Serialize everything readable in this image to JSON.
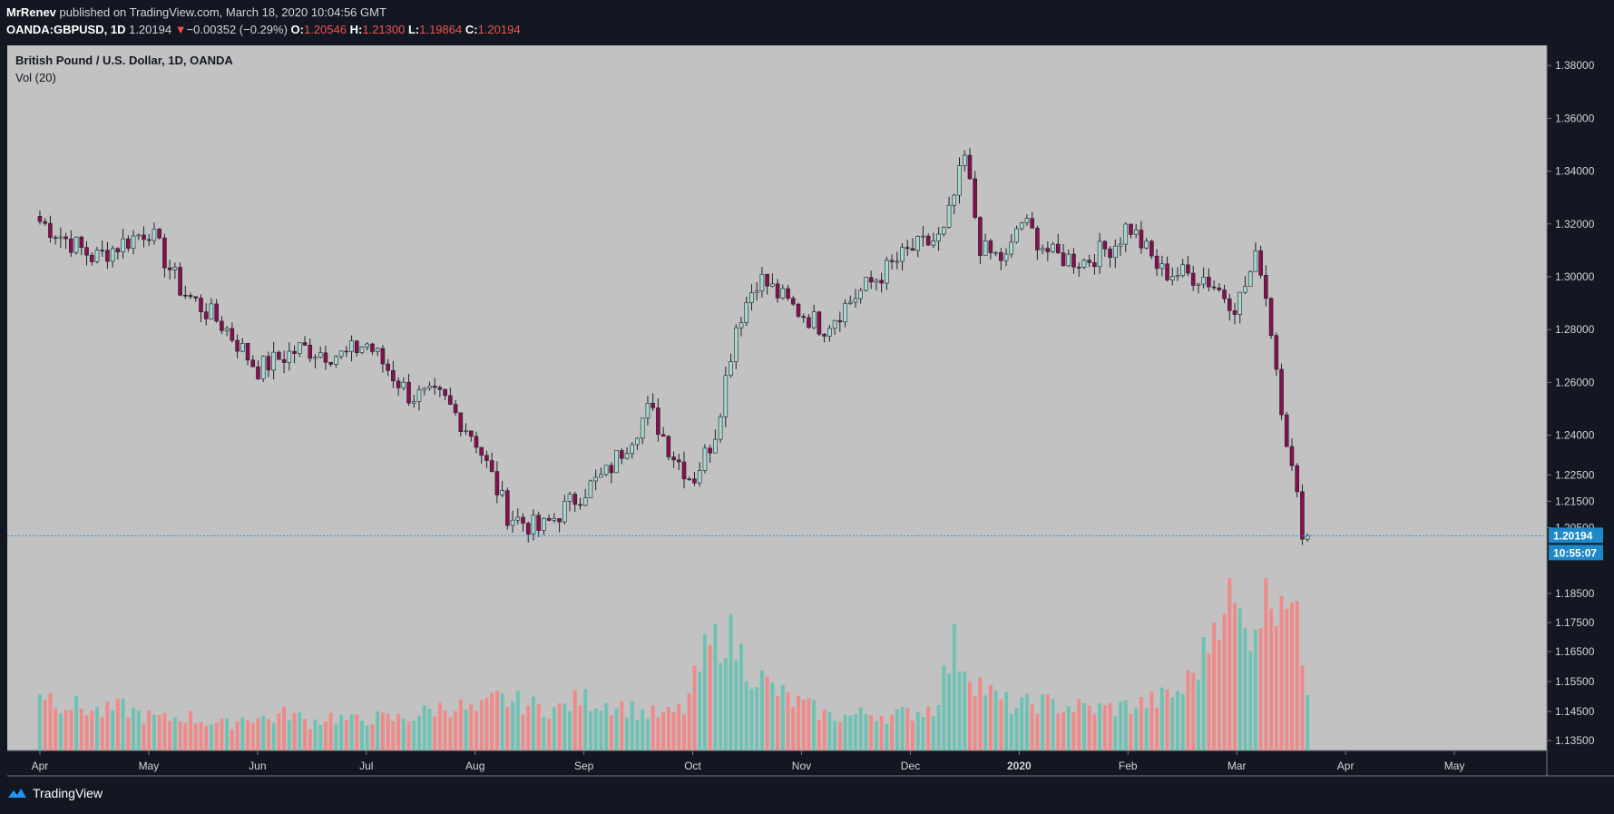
{
  "header": {
    "author": "MrRenev",
    "published_text": "published on TradingView.com, March 18, 2020 10:04:56 GMT",
    "symbol": "OANDA:GBPUSD, 1D",
    "last": "1.20194",
    "change_arrow": "▼",
    "change": "−0.00352 (−0.29%)",
    "o_label": "O:",
    "o_value": "1.20546",
    "h_label": "H:",
    "h_value": "1.21300",
    "l_label": "L:",
    "l_value": "1.19864",
    "c_label": "C:",
    "c_value": "1.20194"
  },
  "legend": {
    "title": "British Pound / U.S. Dollar, 1D, OANDA",
    "volume": "Vol (20)"
  },
  "footer": {
    "brand": "TradingView",
    "logo_icon": "tradingview-logo-icon"
  },
  "colors": {
    "background": "#c2c2c2",
    "frame": "#131722",
    "up_body": "#a8d8cf",
    "down_body": "#880e4f",
    "wick": "#1e222d",
    "vol_up": "#6fc2b3",
    "vol_down": "#ef8a8a",
    "price_line": "#2196f3",
    "price_tag": "#1e88c8"
  },
  "chart_data": {
    "type": "candlestick",
    "title": "British Pound / U.S. Dollar, 1D, OANDA",
    "volume_label": "Vol (20)",
    "x_ticks": [
      "Apr",
      "May",
      "Jun",
      "Jul",
      "Aug",
      "Sep",
      "Oct",
      "Nov",
      "Dec",
      "2020",
      "Feb",
      "Mar",
      "Apr",
      "May"
    ],
    "x_tick_months": [
      0,
      1,
      2,
      3,
      4,
      5,
      6,
      7,
      8,
      9,
      10,
      11,
      12,
      13
    ],
    "y_ticks": [
      "1.38000",
      "1.36000",
      "1.34000",
      "1.32000",
      "1.30000",
      "1.28000",
      "1.26000",
      "1.24000",
      "1.22500",
      "1.21500",
      "1.20500",
      "1.18500",
      "1.17500",
      "1.16500",
      "1.15500",
      "1.14500",
      "1.13500"
    ],
    "y_tick_values": [
      1.38,
      1.36,
      1.34,
      1.32,
      1.3,
      1.28,
      1.26,
      1.24,
      1.225,
      1.215,
      1.205,
      1.185,
      1.175,
      1.165,
      1.155,
      1.145,
      1.135
    ],
    "x_range_months": [
      -0.3,
      13.85
    ],
    "last_price": "1.20194",
    "last_price_value": 1.20194,
    "countdown": "10:55:07",
    "points": [
      [
        0,
        1.321
      ],
      [
        0.5,
        1.307
      ],
      [
        1.0,
        1.318
      ],
      [
        1.3,
        1.295
      ],
      [
        1.7,
        1.281
      ],
      [
        2.0,
        1.265
      ],
      [
        2.4,
        1.273
      ],
      [
        2.8,
        1.27
      ],
      [
        3.0,
        1.275
      ],
      [
        3.4,
        1.255
      ],
      [
        3.7,
        1.254
      ],
      [
        4.0,
        1.239
      ],
      [
        4.3,
        1.21
      ],
      [
        4.6,
        1.204
      ],
      [
        5.0,
        1.219
      ],
      [
        5.2,
        1.225
      ],
      [
        5.6,
        1.25
      ],
      [
        5.8,
        1.234
      ],
      [
        6.0,
        1.223
      ],
      [
        6.2,
        1.24
      ],
      [
        6.4,
        1.282
      ],
      [
        6.6,
        1.3
      ],
      [
        6.9,
        1.289
      ],
      [
        7.2,
        1.281
      ],
      [
        7.5,
        1.293
      ],
      [
        8.0,
        1.31
      ],
      [
        8.3,
        1.315
      ],
      [
        8.5,
        1.345
      ],
      [
        8.65,
        1.31
      ],
      [
        8.9,
        1.306
      ],
      [
        9.0,
        1.322
      ],
      [
        9.3,
        1.308
      ],
      [
        9.6,
        1.306
      ],
      [
        9.9,
        1.313
      ],
      [
        10.0,
        1.32
      ],
      [
        10.3,
        1.302
      ],
      [
        10.7,
        1.3
      ],
      [
        11.0,
        1.289
      ],
      [
        11.2,
        1.309
      ],
      [
        11.3,
        1.285
      ],
      [
        11.4,
        1.255
      ],
      [
        11.5,
        1.228
      ],
      [
        11.6,
        1.205
      ],
      [
        11.65,
        1.2019
      ]
    ],
    "volume_rel": [
      0.35,
      0.28,
      0.25,
      0.22,
      0.25,
      0.2,
      0.18,
      0.2,
      0.17,
      0.15,
      0.2,
      0.18,
      0.22,
      0.16,
      0.2,
      0.17,
      0.19,
      0.18,
      0.2,
      0.24,
      0.26,
      0.22,
      0.3,
      0.28,
      0.25,
      0.24,
      0.3,
      0.28,
      0.26,
      0.22,
      0.2,
      0.24,
      0.55,
      0.7,
      0.5,
      0.38,
      0.3,
      0.25,
      0.2,
      0.2,
      0.22,
      0.2,
      0.22,
      0.25,
      0.6,
      0.42,
      0.3,
      0.25,
      0.28,
      0.26,
      0.25,
      0.24,
      0.25,
      0.27,
      0.3,
      0.35,
      0.55,
      0.95,
      0.68,
      0.9,
      1.0,
      0.4
    ]
  }
}
